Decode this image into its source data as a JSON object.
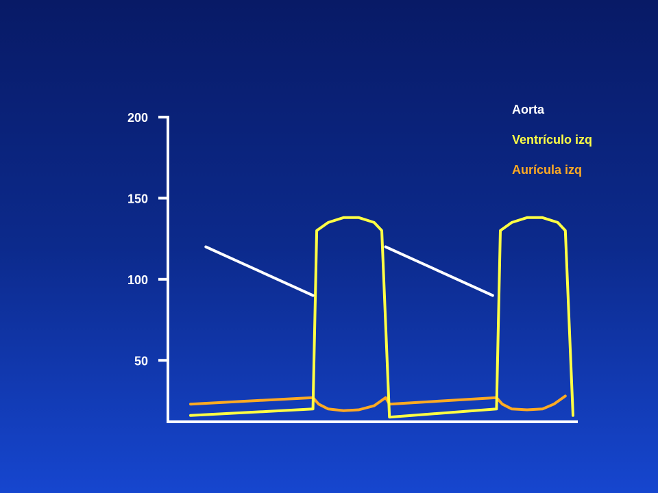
{
  "chart_data": {
    "type": "line",
    "title": "",
    "xlabel": "",
    "ylabel": "",
    "ylim": [
      10,
      200
    ],
    "xlim": [
      0,
      1
    ],
    "y_ticks": [
      "200",
      "150",
      "100",
      "50"
    ],
    "y_tick_values": [
      200,
      150,
      100,
      50
    ],
    "grid": false,
    "legend_position": "top-right",
    "series": [
      {
        "name": "Aorta",
        "color": "#ffffff",
        "segments": [
          [
            [
              0.04,
              120
            ],
            [
              0.32,
              90
            ]
          ],
          [
            [
              0.51,
              120
            ],
            [
              0.79,
              90
            ]
          ]
        ]
      },
      {
        "name": "Ventrículo izq",
        "color": "#ffff44",
        "segments": [
          [
            [
              0.0,
              16
            ],
            [
              0.32,
              20
            ],
            [
              0.33,
              130
            ],
            [
              0.36,
              135
            ],
            [
              0.4,
              138
            ],
            [
              0.44,
              138
            ],
            [
              0.48,
              135
            ],
            [
              0.5,
              130
            ],
            [
              0.52,
              15
            ],
            [
              0.8,
              20
            ],
            [
              0.81,
              130
            ],
            [
              0.84,
              135
            ],
            [
              0.88,
              138
            ],
            [
              0.92,
              138
            ],
            [
              0.96,
              135
            ],
            [
              0.98,
              130
            ],
            [
              1.0,
              16
            ]
          ]
        ]
      },
      {
        "name": "Aurícula izq",
        "color": "#ffaa22",
        "segments": [
          [
            [
              0.0,
              23
            ],
            [
              0.32,
              27
            ],
            [
              0.335,
              23
            ],
            [
              0.36,
              20
            ],
            [
              0.4,
              19
            ],
            [
              0.44,
              19.5
            ],
            [
              0.48,
              22
            ],
            [
              0.51,
              27
            ],
            [
              0.52,
              23
            ],
            [
              0.8,
              27
            ],
            [
              0.815,
              23
            ],
            [
              0.84,
              20
            ],
            [
              0.88,
              19.5
            ],
            [
              0.92,
              20
            ],
            [
              0.95,
              23
            ],
            [
              0.98,
              28
            ]
          ]
        ]
      }
    ]
  },
  "legend": [
    {
      "label": "Aorta",
      "color": "#ffffff"
    },
    {
      "label": "Ventrículo izq",
      "color": "#ffff44"
    },
    {
      "label": "Aurícula izq",
      "color": "#ffaa22"
    }
  ]
}
